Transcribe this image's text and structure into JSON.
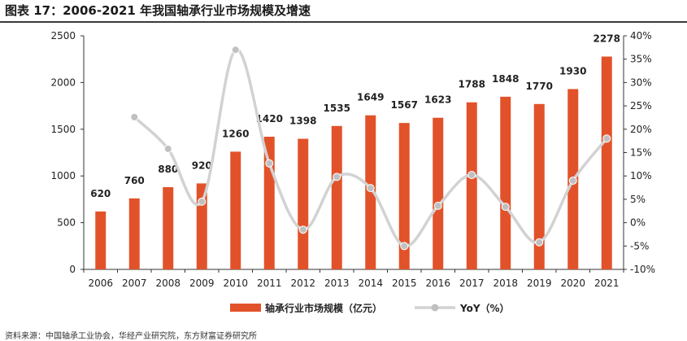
{
  "title": "图表 17：2006-2021 年我国轴承行业市场规模及增速",
  "source": "资料来源：中国轴承工业协会，华经产业研究院，东方财富证券研究所",
  "colors": {
    "bar": "#E2522A",
    "line": "#D2D2D2",
    "marker": "#C0C0C0"
  },
  "chart_data": {
    "type": "bar",
    "categories": [
      "2006",
      "2007",
      "2008",
      "2009",
      "2010",
      "2011",
      "2012",
      "2013",
      "2014",
      "2015",
      "2016",
      "2017",
      "2018",
      "2019",
      "2020",
      "2021"
    ],
    "series": [
      {
        "name": "轴承行业市场规模（亿元）",
        "type": "bar",
        "axis": "left",
        "values": [
          620,
          760,
          880,
          920,
          1260,
          1420,
          1398,
          1535,
          1649,
          1567,
          1623,
          1788,
          1848,
          1770,
          1930,
          2278
        ]
      },
      {
        "name": "YoY（%）",
        "type": "line",
        "axis": "right",
        "smooth": true,
        "values": [
          null,
          22.6,
          15.8,
          4.5,
          37.0,
          12.7,
          -1.5,
          9.8,
          7.4,
          -5.0,
          3.6,
          10.2,
          3.4,
          -4.2,
          9.0,
          18.0
        ]
      }
    ],
    "left_axis": {
      "min": 0,
      "max": 2500,
      "ticks": [
        "0",
        "500",
        "1000",
        "1500",
        "2000",
        "2500"
      ]
    },
    "right_axis": {
      "min": -10,
      "max": 40,
      "ticks": [
        "-10%",
        "-5%",
        "0%",
        "5%",
        "10%",
        "15%",
        "20%",
        "25%",
        "30%",
        "35%",
        "40%"
      ]
    },
    "data_labels": [
      "620",
      "760",
      "880",
      "920",
      "1260",
      "1420",
      "1398",
      "1535",
      "1649",
      "1567",
      "1623",
      "1788",
      "1848",
      "1770",
      "1930",
      "2278"
    ],
    "legend_position": "bottom",
    "grid": false
  }
}
